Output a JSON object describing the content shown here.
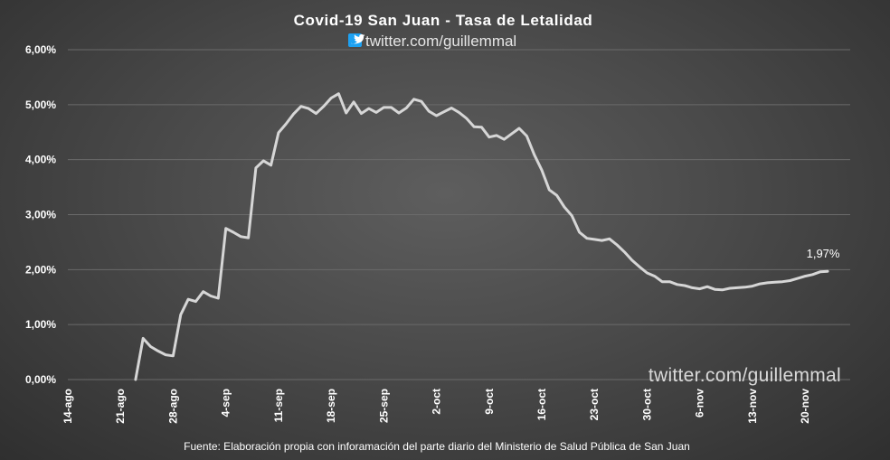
{
  "chart_data": {
    "type": "line",
    "title": "Covid-19  San  Juan  -  Tasa  de  Letalidad",
    "subtitle": "twitter.com/guillemmal",
    "subtitle_icon": "twitter-bird-icon",
    "watermark": "twitter.com/guillemmal",
    "source": "Fuente: Elaboración propia con inforamación del parte diario del Ministerio de Salud Pública de San Juan",
    "xlabel": "",
    "ylabel": "",
    "ylim": [
      0,
      0.06
    ],
    "y_ticks": [
      "0,00%",
      "1,00%",
      "2,00%",
      "3,00%",
      "4,00%",
      "5,00%",
      "6,00%"
    ],
    "x_ticks": [
      "14-ago",
      "21-ago",
      "28-ago",
      "4-sep",
      "11-sep",
      "18-sep",
      "25-sep",
      "2-oct",
      "9-oct",
      "16-oct",
      "23-oct",
      "30-oct",
      "6-nov",
      "13-nov",
      "20-nov"
    ],
    "grid": true,
    "line_color": "#d6d6d6",
    "background_color": "#4a4a4a",
    "last_point_label": "1,97%",
    "series": [
      {
        "x": [
          "2020-08-23",
          "2020-08-24",
          "2020-08-25",
          "2020-08-26",
          "2020-08-27",
          "2020-08-28",
          "2020-08-29",
          "2020-08-30",
          "2020-08-31",
          "2020-09-01",
          "2020-09-02",
          "2020-09-03",
          "2020-09-04",
          "2020-09-05",
          "2020-09-06",
          "2020-09-07",
          "2020-09-08",
          "2020-09-09",
          "2020-09-10",
          "2020-09-11",
          "2020-09-12",
          "2020-09-13",
          "2020-09-14",
          "2020-09-15",
          "2020-09-16",
          "2020-09-17",
          "2020-09-18",
          "2020-09-19",
          "2020-09-20",
          "2020-09-21",
          "2020-09-22",
          "2020-09-23",
          "2020-09-24",
          "2020-09-25",
          "2020-09-26",
          "2020-09-27",
          "2020-09-28",
          "2020-09-29",
          "2020-09-30",
          "2020-10-01",
          "2020-10-02",
          "2020-10-03",
          "2020-10-04",
          "2020-10-05",
          "2020-10-06",
          "2020-10-07",
          "2020-10-08",
          "2020-10-09",
          "2020-10-10",
          "2020-10-11",
          "2020-10-12",
          "2020-10-13",
          "2020-10-14",
          "2020-10-15",
          "2020-10-16",
          "2020-10-17",
          "2020-10-18",
          "2020-10-19",
          "2020-10-20",
          "2020-10-21",
          "2020-10-22",
          "2020-10-23",
          "2020-10-24",
          "2020-10-25",
          "2020-10-26",
          "2020-10-27",
          "2020-10-28",
          "2020-10-29",
          "2020-10-30",
          "2020-10-31",
          "2020-11-01",
          "2020-11-02",
          "2020-11-03",
          "2020-11-04",
          "2020-11-05",
          "2020-11-06",
          "2020-11-07",
          "2020-11-08",
          "2020-11-09",
          "2020-11-10",
          "2020-11-11",
          "2020-11-12",
          "2020-11-13",
          "2020-11-14",
          "2020-11-15",
          "2020-11-16",
          "2020-11-17",
          "2020-11-18",
          "2020-11-19",
          "2020-11-20",
          "2020-11-21",
          "2020-11-22",
          "2020-11-23"
        ],
        "values": [
          0.0,
          0.0075,
          0.006,
          0.0052,
          0.0045,
          0.0043,
          0.0118,
          0.0146,
          0.0142,
          0.016,
          0.0152,
          0.0148,
          0.0275,
          0.0268,
          0.026,
          0.0258,
          0.0385,
          0.0398,
          0.039,
          0.0449,
          0.0465,
          0.0483,
          0.0497,
          0.0493,
          0.0484,
          0.0497,
          0.0512,
          0.052,
          0.0485,
          0.0505,
          0.0484,
          0.0493,
          0.0486,
          0.0495,
          0.0495,
          0.0485,
          0.0494,
          0.051,
          0.0506,
          0.0488,
          0.048,
          0.0487,
          0.0494,
          0.0486,
          0.0475,
          0.046,
          0.0459,
          0.0441,
          0.0444,
          0.0437,
          0.0447,
          0.0457,
          0.0443,
          0.0409,
          0.0381,
          0.0345,
          0.0335,
          0.0314,
          0.0298,
          0.0268,
          0.0257,
          0.0255,
          0.0253,
          0.0256,
          0.0245,
          0.0232,
          0.0217,
          0.0205,
          0.0194,
          0.0188,
          0.0178,
          0.0178,
          0.0173,
          0.0171,
          0.0167,
          0.0165,
          0.0169,
          0.0164,
          0.0163,
          0.0166,
          0.0167,
          0.0168,
          0.017,
          0.0174,
          0.0176,
          0.0177,
          0.0178,
          0.018,
          0.0184,
          0.0188,
          0.0191,
          0.0196,
          0.0197
        ]
      }
    ]
  }
}
